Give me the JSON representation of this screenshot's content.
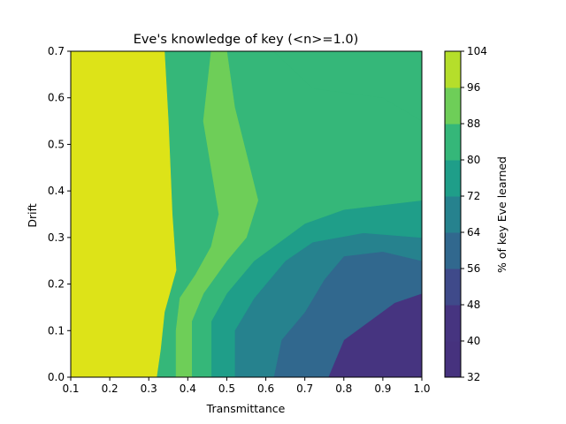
{
  "chart_data": {
    "type": "contour",
    "title": "Eve's knowledge of key (<n>=1.0)",
    "xlabel": "Transmittance",
    "ylabel": "Drift",
    "xlim": [
      0.1,
      1.0
    ],
    "ylim": [
      0.0,
      0.7
    ],
    "xticks": [
      "0.1",
      "0.2",
      "0.3",
      "0.4",
      "0.5",
      "0.6",
      "0.7",
      "0.8",
      "0.9",
      "1.0"
    ],
    "yticks": [
      "0.0",
      "0.1",
      "0.2",
      "0.3",
      "0.4",
      "0.5",
      "0.6",
      "0.7"
    ],
    "colorbar": {
      "label": "% of key Eve learned",
      "levels": [
        32,
        40,
        48,
        56,
        64,
        72,
        80,
        88,
        96,
        104
      ],
      "tick_labels": [
        "32",
        "40",
        "48",
        "56",
        "64",
        "72",
        "80",
        "88",
        "96",
        "104"
      ],
      "colors": [
        "#46327e",
        "#463480",
        "#3f4a8a",
        "#31688e",
        "#26828e",
        "#1f9e89",
        "#35b779",
        "#6ece58",
        "#b5de2b",
        "#dde318"
      ]
    },
    "regions": [
      {
        "level": [
          48,
          56
        ],
        "color": "#3e4a89",
        "boundary": [
          [
            0.93,
            0.16
          ],
          [
            1.0,
            0.18
          ],
          [
            1.0,
            0.0
          ],
          [
            0.76,
            0.0
          ],
          [
            0.79,
            0.08
          ],
          [
            0.9,
            0.14
          ]
        ]
      },
      {
        "level": [
          40,
          48
        ],
        "color": "#463480",
        "boundary": [
          [
            0.8,
            0.08
          ],
          [
            0.93,
            0.16
          ],
          [
            1.0,
            0.18
          ],
          [
            1.0,
            0.0
          ],
          [
            0.76,
            0.0
          ]
        ]
      },
      {
        "level": [
          56,
          64
        ],
        "color": "#31688e",
        "boundary": [
          [
            0.8,
            0.26
          ],
          [
            0.9,
            0.27
          ],
          [
            1.0,
            0.25
          ],
          [
            1.0,
            0.18
          ],
          [
            0.93,
            0.16
          ],
          [
            0.8,
            0.08
          ],
          [
            0.76,
            0.0
          ],
          [
            0.62,
            0.0
          ],
          [
            0.64,
            0.08
          ],
          [
            0.7,
            0.14
          ],
          [
            0.75,
            0.21
          ]
        ]
      },
      {
        "level": [
          64,
          72
        ],
        "color": "#26828e",
        "boundary": [
          [
            0.85,
            0.31
          ],
          [
            1.0,
            0.3
          ],
          [
            1.0,
            0.25
          ],
          [
            0.9,
            0.27
          ],
          [
            0.8,
            0.26
          ],
          [
            0.75,
            0.21
          ],
          [
            0.7,
            0.14
          ],
          [
            0.64,
            0.08
          ],
          [
            0.62,
            0.0
          ],
          [
            0.52,
            0.0
          ],
          [
            0.52,
            0.1
          ],
          [
            0.57,
            0.17
          ],
          [
            0.65,
            0.25
          ],
          [
            0.72,
            0.29
          ]
        ]
      },
      {
        "level": [
          72,
          80
        ],
        "color": "#1f9e89",
        "boundary": [
          [
            0.9,
            0.37
          ],
          [
            1.0,
            0.38
          ],
          [
            1.0,
            0.3
          ],
          [
            0.85,
            0.31
          ],
          [
            0.72,
            0.29
          ],
          [
            0.65,
            0.25
          ],
          [
            0.57,
            0.17
          ],
          [
            0.52,
            0.1
          ],
          [
            0.52,
            0.0
          ],
          [
            0.46,
            0.0
          ],
          [
            0.46,
            0.12
          ],
          [
            0.5,
            0.18
          ],
          [
            0.57,
            0.25
          ],
          [
            0.7,
            0.33
          ],
          [
            0.8,
            0.36
          ]
        ]
      },
      {
        "level": [
          80,
          88
        ],
        "color": "#35b779",
        "boundary": [
          [
            0.72,
            0.62
          ],
          [
            0.9,
            0.6
          ],
          [
            1.0,
            0.55
          ],
          [
            1.0,
            0.38
          ],
          [
            0.9,
            0.37
          ],
          [
            0.8,
            0.36
          ],
          [
            0.7,
            0.33
          ],
          [
            0.57,
            0.25
          ],
          [
            0.5,
            0.18
          ],
          [
            0.46,
            0.12
          ],
          [
            0.46,
            0.0
          ],
          [
            0.41,
            0.0
          ],
          [
            0.41,
            0.12
          ],
          [
            0.44,
            0.18
          ],
          [
            0.5,
            0.25
          ],
          [
            0.55,
            0.3
          ],
          [
            0.58,
            0.38
          ],
          [
            0.52,
            0.58
          ],
          [
            0.5,
            0.7
          ],
          [
            0.62,
            0.7
          ]
        ]
      },
      {
        "level": [
          88,
          96
        ],
        "color": "#6ece58",
        "boundary": [
          [
            0.5,
            0.7
          ],
          [
            0.52,
            0.58
          ],
          [
            0.58,
            0.38
          ],
          [
            0.55,
            0.3
          ],
          [
            0.5,
            0.25
          ],
          [
            0.44,
            0.18
          ],
          [
            0.41,
            0.12
          ],
          [
            0.41,
            0.0
          ],
          [
            0.37,
            0.0
          ],
          [
            0.37,
            0.1
          ],
          [
            0.38,
            0.17
          ],
          [
            0.42,
            0.22
          ],
          [
            0.46,
            0.28
          ],
          [
            0.48,
            0.35
          ],
          [
            0.44,
            0.55
          ],
          [
            0.46,
            0.7
          ]
        ]
      },
      {
        "level": [
          96,
          104
        ],
        "color": "#dde318",
        "boundary": [
          [
            0.1,
            0.7
          ],
          [
            0.34,
            0.7
          ],
          [
            0.35,
            0.55
          ],
          [
            0.36,
            0.35
          ],
          [
            0.37,
            0.23
          ],
          [
            0.34,
            0.14
          ],
          [
            0.33,
            0.06
          ],
          [
            0.32,
            0.0
          ],
          [
            0.1,
            0.0
          ]
        ]
      }
    ]
  }
}
